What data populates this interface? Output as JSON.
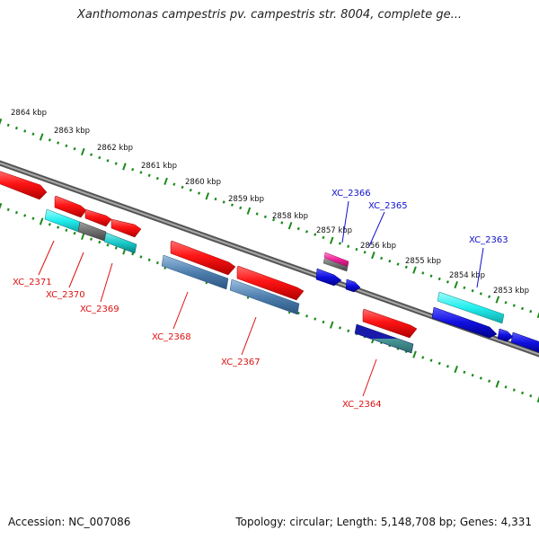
{
  "title": "Xanthomonas campestris pv. campestris str. 8004, complete ge...",
  "accession": "Accession: NC_007086",
  "summary": "Topology: circular; Length: 5,148,708 bp; Genes: 4,331",
  "colors": {
    "backbone": "#7a7a7a",
    "tick": "#1a8a1a",
    "reverse_label": "#dd1111",
    "forward_label": "#1111cc",
    "red_gene": "#ff1414",
    "blue_gene": "#1010e0",
    "cyan_gene": "#22dddd",
    "steel_gene": "#4f7fae",
    "gray_gene": "#6e6e6e",
    "magenta_gene": "#ee2299",
    "navy_gene": "#1a1aaa"
  },
  "ticks": [
    {
      "label": "2864 kbp"
    },
    {
      "label": "2863 kbp"
    },
    {
      "label": "2862 kbp"
    },
    {
      "label": "2861 kbp"
    },
    {
      "label": "2860 kbp"
    },
    {
      "label": "2859 kbp"
    },
    {
      "label": "2858 kbp"
    },
    {
      "label": "2857 kbp"
    },
    {
      "label": "2856 kbp"
    },
    {
      "label": "2855 kbp"
    },
    {
      "label": "2854 kbp"
    },
    {
      "label": "2853 kbp"
    }
  ],
  "genes": [
    {
      "name": "XC_2371",
      "strand": "reverse"
    },
    {
      "name": "XC_2370",
      "strand": "reverse"
    },
    {
      "name": "XC_2369",
      "strand": "reverse"
    },
    {
      "name": "XC_2368",
      "strand": "reverse"
    },
    {
      "name": "XC_2367",
      "strand": "reverse"
    },
    {
      "name": "XC_2366",
      "strand": "forward"
    },
    {
      "name": "XC_2365",
      "strand": "forward"
    },
    {
      "name": "XC_2364",
      "strand": "reverse"
    },
    {
      "name": "XC_2363",
      "strand": "forward"
    }
  ]
}
